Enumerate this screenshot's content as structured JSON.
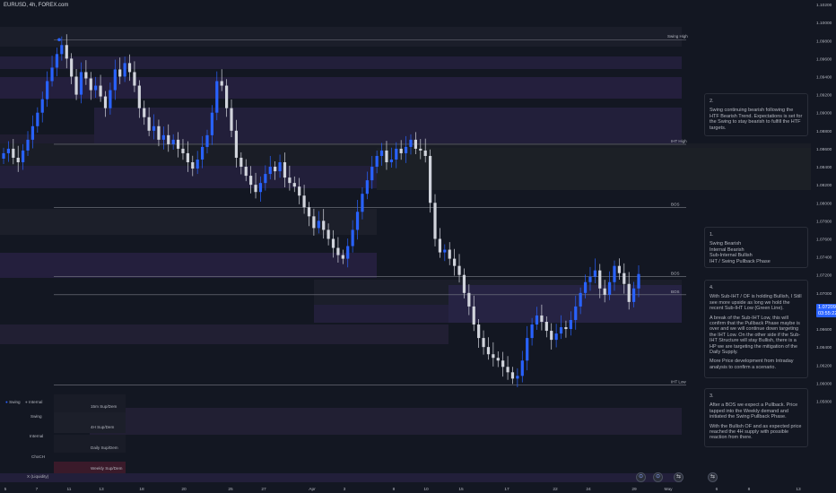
{
  "title": "EURUSD, 4h, FOREX.com",
  "chart_data": {
    "type": "candlestick",
    "symbol": "EURUSD",
    "timeframe": "4h",
    "ylim": [
      1.049,
      1.1025
    ],
    "y_ticks": [
      "1.10200",
      "1.10000",
      "1.09800",
      "1.09600",
      "1.09400",
      "1.09200",
      "1.09000",
      "1.08800",
      "1.08600",
      "1.08400",
      "1.08200",
      "1.08000",
      "1.07800",
      "1.07600",
      "1.07400",
      "1.07200",
      "1.07000",
      "1.06800",
      "1.06600",
      "1.06400",
      "1.06200",
      "1.06000",
      "1.05800"
    ],
    "x_ticks": [
      "5",
      "7",
      "11",
      "13",
      "18",
      "20",
      "25",
      "27",
      "Apr",
      "3",
      "8",
      "10",
      "15",
      "17",
      "22",
      "24",
      "29",
      "May",
      "6",
      "8",
      "13"
    ],
    "current_price": "1.07209",
    "countdown": "03:55:22",
    "levels": [
      {
        "label": "Swing High",
        "price": 1.0981
      },
      {
        "label": "IHT High",
        "price": 1.0865
      },
      {
        "label": "BOS",
        "price": 1.0795
      },
      {
        "label": "BOS",
        "price": 1.0718
      },
      {
        "label": "BOS",
        "price": 1.0698
      },
      {
        "label": "IHT Low",
        "price": 1.0598
      }
    ],
    "close_series": [
      1.0855,
      1.086,
      1.085,
      1.0845,
      1.0858,
      1.087,
      1.0885,
      1.09,
      1.0915,
      1.0935,
      1.095,
      1.0965,
      1.0975,
      1.096,
      1.094,
      1.092,
      1.0945,
      1.0938,
      1.0925,
      1.093,
      1.0918,
      1.0905,
      1.0925,
      1.0948,
      1.094,
      1.0955,
      1.0945,
      1.093,
      1.0905,
      1.0895,
      1.088,
      1.0885,
      1.087,
      1.0875,
      1.0865,
      1.087,
      1.086,
      1.0855,
      1.0845,
      1.0838,
      1.0848,
      1.0862,
      1.0875,
      1.09,
      1.0935,
      1.093,
      1.0905,
      1.088,
      1.085,
      1.084,
      1.083,
      1.082,
      1.0812,
      1.0822,
      1.0832,
      1.084,
      1.0835,
      1.0845,
      1.0828,
      1.0822,
      1.0818,
      1.0808,
      1.0795,
      1.0785,
      1.0772,
      1.078,
      1.077,
      1.076,
      1.075,
      1.0742,
      1.0738,
      1.0752,
      1.077,
      1.079,
      1.081,
      1.0825,
      1.084,
      1.0852,
      1.0858,
      1.0845,
      1.0848,
      1.086,
      1.0855,
      1.0862,
      1.087,
      1.086,
      1.0858,
      1.0852,
      1.08,
      1.076,
      1.0745,
      1.0748,
      1.0738,
      1.073,
      1.072,
      1.07,
      1.0685,
      1.0665,
      1.065,
      1.064,
      1.0632,
      1.0628,
      1.0625,
      1.0618,
      1.0612,
      1.0605,
      1.0608,
      1.0625,
      1.065,
      1.0665,
      1.0675,
      1.0668,
      1.0658,
      1.0648,
      1.0655,
      1.0662,
      1.066,
      1.067,
      1.0685,
      1.07,
      1.0712,
      1.0718,
      1.0725,
      1.0705,
      1.0698,
      1.0712,
      1.073,
      1.0722,
      1.071,
      1.069,
      1.0705,
      1.0721
    ]
  },
  "notes": [
    {
      "id": "2",
      "lines": [
        "2.",
        "Swing continuing bearish following the HTF Bearish Trend. Expectations is set for the Swing to stay bearish to fulfill the HTF targets."
      ]
    },
    {
      "id": "1",
      "lines": [
        "1.",
        "Swing Bearish\nInternal Bearish\nSub-Internal Bullish\nIHT / Swing Pullback Phase"
      ]
    },
    {
      "id": "4",
      "lines": [
        "4.",
        "With Sub-IHT / OF is holding Bullish, I Still see more upside as long we hold the recent Sub-IHT Low (Green Line).",
        "A break of the Sub-IHT Low, this will confirm that the Pullback Phase maybe is over and we will continue down targeting the IHT Low. On the other side if the Sub-IHT Structure will stay Bullish, there is a HP we are targeting the mitigation of the Daily Supply.",
        "More Price development from Intraday analysis to confirm a scenario."
      ]
    },
    {
      "id": "3",
      "lines": [
        "3.",
        "After a BOS we expect a Pullback. Price tapped into the Weekly demand and initiated the Swing Pullback Phase.",
        "With the Bullish OF and as expected price reached the 4H supply with possible reaction from there."
      ]
    }
  ],
  "legend": {
    "toggle_swing": "Swing",
    "toggle_internal": "Internal",
    "rows": [
      "Swing",
      "Internal",
      "ChoCH",
      "X (Liquidity)"
    ],
    "zones": [
      "15m Sup/Dem",
      "4H Sup/Dem",
      "Daily Sup/Dem",
      "Weekly Sup/Dem"
    ]
  },
  "colors": {
    "background": "#131722",
    "bull_candle": "#2962ff",
    "bear_candle": "#d1d4dc",
    "supply_zone": "#2a2645",
    "demand_zone": "#1f2535",
    "level_line": "#787b86"
  }
}
